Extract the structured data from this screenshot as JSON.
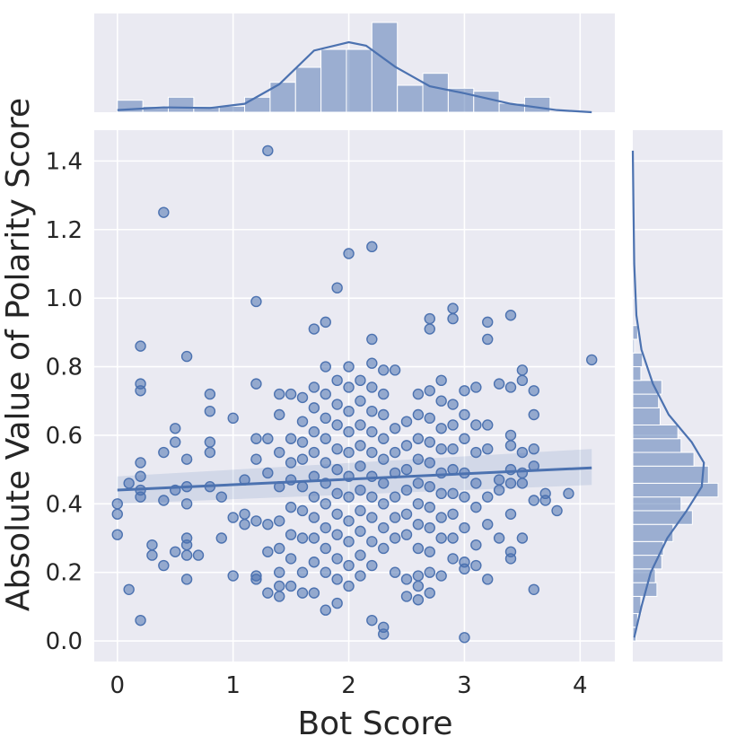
{
  "chart_data": {
    "type": "scatter",
    "title": "",
    "xlabel": "Bot Score",
    "ylabel": "Absolute Value of Polarity Score",
    "xlim": [
      -0.2,
      4.3
    ],
    "ylim": [
      -0.06,
      1.49
    ],
    "xticks": [
      "0",
      "1",
      "2",
      "3",
      "4"
    ],
    "yticks": [
      "0.0",
      "0.2",
      "0.4",
      "0.6",
      "0.8",
      "1.0",
      "1.2",
      "1.4"
    ],
    "grid": true,
    "background": "#eaeaf2",
    "series_color": "#4c72b0",
    "points": [
      [
        0.0,
        0.4
      ],
      [
        0.0,
        0.37
      ],
      [
        0.0,
        0.31
      ],
      [
        0.1,
        0.46
      ],
      [
        0.1,
        0.15
      ],
      [
        0.2,
        0.86
      ],
      [
        0.2,
        0.75
      ],
      [
        0.2,
        0.73
      ],
      [
        0.2,
        0.52
      ],
      [
        0.2,
        0.48
      ],
      [
        0.2,
        0.44
      ],
      [
        0.2,
        0.42
      ],
      [
        0.2,
        0.06
      ],
      [
        0.3,
        0.28
      ],
      [
        0.3,
        0.25
      ],
      [
        0.4,
        1.25
      ],
      [
        0.4,
        0.55
      ],
      [
        0.4,
        0.41
      ],
      [
        0.4,
        0.22
      ],
      [
        0.5,
        0.62
      ],
      [
        0.5,
        0.58
      ],
      [
        0.5,
        0.44
      ],
      [
        0.5,
        0.26
      ],
      [
        0.6,
        0.83
      ],
      [
        0.6,
        0.53
      ],
      [
        0.6,
        0.45
      ],
      [
        0.6,
        0.4
      ],
      [
        0.6,
        0.3
      ],
      [
        0.6,
        0.28
      ],
      [
        0.6,
        0.25
      ],
      [
        0.6,
        0.18
      ],
      [
        0.7,
        0.25
      ],
      [
        0.8,
        0.72
      ],
      [
        0.8,
        0.67
      ],
      [
        0.8,
        0.58
      ],
      [
        0.8,
        0.55
      ],
      [
        0.8,
        0.45
      ],
      [
        0.9,
        0.42
      ],
      [
        0.9,
        0.3
      ],
      [
        1.0,
        0.65
      ],
      [
        1.0,
        0.36
      ],
      [
        1.0,
        0.19
      ],
      [
        1.1,
        0.47
      ],
      [
        1.1,
        0.37
      ],
      [
        1.1,
        0.34
      ],
      [
        1.2,
        0.99
      ],
      [
        1.2,
        0.75
      ],
      [
        1.2,
        0.59
      ],
      [
        1.2,
        0.53
      ],
      [
        1.2,
        0.35
      ],
      [
        1.2,
        0.19
      ],
      [
        1.2,
        0.18
      ],
      [
        1.3,
        1.43
      ],
      [
        1.3,
        0.59
      ],
      [
        1.3,
        0.49
      ],
      [
        1.3,
        0.34
      ],
      [
        1.3,
        0.26
      ],
      [
        1.3,
        0.14
      ],
      [
        1.4,
        0.72
      ],
      [
        1.4,
        0.66
      ],
      [
        1.4,
        0.55
      ],
      [
        1.4,
        0.45
      ],
      [
        1.4,
        0.35
      ],
      [
        1.4,
        0.27
      ],
      [
        1.4,
        0.2
      ],
      [
        1.4,
        0.16
      ],
      [
        1.4,
        0.13
      ],
      [
        1.5,
        0.72
      ],
      [
        1.5,
        0.59
      ],
      [
        1.5,
        0.52
      ],
      [
        1.5,
        0.47
      ],
      [
        1.5,
        0.39
      ],
      [
        1.5,
        0.31
      ],
      [
        1.5,
        0.24
      ],
      [
        1.5,
        0.16
      ],
      [
        1.6,
        0.71
      ],
      [
        1.6,
        0.64
      ],
      [
        1.6,
        0.58
      ],
      [
        1.6,
        0.53
      ],
      [
        1.6,
        0.45
      ],
      [
        1.6,
        0.38
      ],
      [
        1.6,
        0.3
      ],
      [
        1.6,
        0.2
      ],
      [
        1.6,
        0.14
      ],
      [
        1.7,
        0.91
      ],
      [
        1.7,
        0.74
      ],
      [
        1.7,
        0.68
      ],
      [
        1.7,
        0.61
      ],
      [
        1.7,
        0.55
      ],
      [
        1.7,
        0.48
      ],
      [
        1.7,
        0.42
      ],
      [
        1.7,
        0.36
      ],
      [
        1.7,
        0.3
      ],
      [
        1.7,
        0.23
      ],
      [
        1.7,
        0.14
      ],
      [
        1.8,
        0.93
      ],
      [
        1.8,
        0.8
      ],
      [
        1.8,
        0.72
      ],
      [
        1.8,
        0.65
      ],
      [
        1.8,
        0.59
      ],
      [
        1.8,
        0.52
      ],
      [
        1.8,
        0.46
      ],
      [
        1.8,
        0.4
      ],
      [
        1.8,
        0.33
      ],
      [
        1.8,
        0.27
      ],
      [
        1.8,
        0.2
      ],
      [
        1.8,
        0.09
      ],
      [
        1.9,
        1.03
      ],
      [
        1.9,
        0.76
      ],
      [
        1.9,
        0.69
      ],
      [
        1.9,
        0.63
      ],
      [
        1.9,
        0.56
      ],
      [
        1.9,
        0.5
      ],
      [
        1.9,
        0.43
      ],
      [
        1.9,
        0.37
      ],
      [
        1.9,
        0.31
      ],
      [
        1.9,
        0.24
      ],
      [
        1.9,
        0.18
      ],
      [
        1.9,
        0.11
      ],
      [
        2.0,
        1.13
      ],
      [
        2.0,
        0.8
      ],
      [
        2.0,
        0.74
      ],
      [
        2.0,
        0.67
      ],
      [
        2.0,
        0.61
      ],
      [
        2.0,
        0.55
      ],
      [
        2.0,
        0.48
      ],
      [
        2.0,
        0.42
      ],
      [
        2.0,
        0.35
      ],
      [
        2.0,
        0.29
      ],
      [
        2.0,
        0.22
      ],
      [
        2.0,
        0.16
      ],
      [
        2.1,
        0.76
      ],
      [
        2.1,
        0.7
      ],
      [
        2.1,
        0.63
      ],
      [
        2.1,
        0.57
      ],
      [
        2.1,
        0.51
      ],
      [
        2.1,
        0.44
      ],
      [
        2.1,
        0.38
      ],
      [
        2.1,
        0.32
      ],
      [
        2.1,
        0.25
      ],
      [
        2.1,
        0.19
      ],
      [
        2.2,
        1.15
      ],
      [
        2.2,
        0.88
      ],
      [
        2.2,
        0.81
      ],
      [
        2.2,
        0.74
      ],
      [
        2.2,
        0.67
      ],
      [
        2.2,
        0.61
      ],
      [
        2.2,
        0.55
      ],
      [
        2.2,
        0.48
      ],
      [
        2.2,
        0.42
      ],
      [
        2.2,
        0.36
      ],
      [
        2.2,
        0.29
      ],
      [
        2.2,
        0.22
      ],
      [
        2.2,
        0.06
      ],
      [
        2.3,
        0.79
      ],
      [
        2.3,
        0.72
      ],
      [
        2.3,
        0.66
      ],
      [
        2.3,
        0.59
      ],
      [
        2.3,
        0.53
      ],
      [
        2.3,
        0.46
      ],
      [
        2.3,
        0.4
      ],
      [
        2.3,
        0.33
      ],
      [
        2.3,
        0.27
      ],
      [
        2.3,
        0.04
      ],
      [
        2.3,
        0.02
      ],
      [
        2.4,
        0.79
      ],
      [
        2.4,
        0.62
      ],
      [
        2.4,
        0.55
      ],
      [
        2.4,
        0.49
      ],
      [
        2.4,
        0.42
      ],
      [
        2.4,
        0.36
      ],
      [
        2.4,
        0.3
      ],
      [
        2.4,
        0.2
      ],
      [
        2.5,
        0.64
      ],
      [
        2.5,
        0.57
      ],
      [
        2.5,
        0.5
      ],
      [
        2.5,
        0.44
      ],
      [
        2.5,
        0.37
      ],
      [
        2.5,
        0.31
      ],
      [
        2.5,
        0.18
      ],
      [
        2.5,
        0.13
      ],
      [
        2.6,
        0.72
      ],
      [
        2.6,
        0.66
      ],
      [
        2.6,
        0.59
      ],
      [
        2.6,
        0.53
      ],
      [
        2.6,
        0.46
      ],
      [
        2.6,
        0.4
      ],
      [
        2.6,
        0.34
      ],
      [
        2.6,
        0.27
      ],
      [
        2.6,
        0.19
      ],
      [
        2.6,
        0.16
      ],
      [
        2.6,
        0.12
      ],
      [
        2.7,
        0.94
      ],
      [
        2.7,
        0.91
      ],
      [
        2.7,
        0.73
      ],
      [
        2.7,
        0.65
      ],
      [
        2.7,
        0.58
      ],
      [
        2.7,
        0.52
      ],
      [
        2.7,
        0.45
      ],
      [
        2.7,
        0.39
      ],
      [
        2.7,
        0.33
      ],
      [
        2.7,
        0.26
      ],
      [
        2.7,
        0.2
      ],
      [
        2.7,
        0.14
      ],
      [
        2.8,
        0.76
      ],
      [
        2.8,
        0.7
      ],
      [
        2.8,
        0.62
      ],
      [
        2.8,
        0.56
      ],
      [
        2.8,
        0.49
      ],
      [
        2.8,
        0.43
      ],
      [
        2.8,
        0.36
      ],
      [
        2.8,
        0.3
      ],
      [
        2.8,
        0.19
      ],
      [
        2.9,
        0.97
      ],
      [
        2.9,
        0.94
      ],
      [
        2.9,
        0.69
      ],
      [
        2.9,
        0.63
      ],
      [
        2.9,
        0.56
      ],
      [
        2.9,
        0.5
      ],
      [
        2.9,
        0.43
      ],
      [
        2.9,
        0.37
      ],
      [
        2.9,
        0.3
      ],
      [
        2.9,
        0.24
      ],
      [
        3.0,
        0.73
      ],
      [
        3.0,
        0.66
      ],
      [
        3.0,
        0.59
      ],
      [
        3.0,
        0.49
      ],
      [
        3.0,
        0.42
      ],
      [
        3.0,
        0.33
      ],
      [
        3.0,
        0.23
      ],
      [
        3.0,
        0.21
      ],
      [
        3.0,
        0.01
      ],
      [
        3.1,
        0.74
      ],
      [
        3.1,
        0.63
      ],
      [
        3.1,
        0.55
      ],
      [
        3.1,
        0.46
      ],
      [
        3.1,
        0.39
      ],
      [
        3.1,
        0.28
      ],
      [
        3.1,
        0.22
      ],
      [
        3.2,
        0.93
      ],
      [
        3.2,
        0.88
      ],
      [
        3.2,
        0.63
      ],
      [
        3.2,
        0.56
      ],
      [
        3.2,
        0.42
      ],
      [
        3.2,
        0.34
      ],
      [
        3.2,
        0.18
      ],
      [
        3.3,
        0.75
      ],
      [
        3.3,
        0.47
      ],
      [
        3.3,
        0.44
      ],
      [
        3.3,
        0.3
      ],
      [
        3.4,
        0.95
      ],
      [
        3.4,
        0.74
      ],
      [
        3.4,
        0.6
      ],
      [
        3.4,
        0.57
      ],
      [
        3.4,
        0.5
      ],
      [
        3.4,
        0.46
      ],
      [
        3.4,
        0.37
      ],
      [
        3.4,
        0.26
      ],
      [
        3.4,
        0.24
      ],
      [
        3.5,
        0.79
      ],
      [
        3.5,
        0.76
      ],
      [
        3.5,
        0.55
      ],
      [
        3.5,
        0.49
      ],
      [
        3.5,
        0.46
      ],
      [
        3.5,
        0.3
      ],
      [
        3.6,
        0.73
      ],
      [
        3.6,
        0.66
      ],
      [
        3.6,
        0.56
      ],
      [
        3.6,
        0.51
      ],
      [
        3.6,
        0.41
      ],
      [
        3.6,
        0.15
      ],
      [
        3.7,
        0.43
      ],
      [
        3.7,
        0.41
      ],
      [
        3.8,
        0.38
      ],
      [
        3.9,
        0.43
      ],
      [
        4.1,
        0.82
      ]
    ],
    "regression": {
      "x": [
        0.0,
        4.1
      ],
      "y": [
        0.44,
        0.505
      ],
      "ci_low": [
        0.4,
        0.455
      ],
      "ci_high": [
        0.48,
        0.56
      ]
    },
    "marginal_x": {
      "bin_edges": [
        0.0,
        0.22,
        0.44,
        0.66,
        0.88,
        1.1,
        1.32,
        1.54,
        1.76,
        1.98,
        2.2,
        2.42,
        2.64,
        2.86,
        3.08,
        3.3,
        3.52,
        3.74,
        3.96,
        4.18
      ],
      "counts": [
        4,
        2,
        5,
        2,
        2,
        5,
        10,
        15,
        21,
        21,
        30,
        9,
        13,
        8,
        7,
        3,
        5,
        0,
        0
      ],
      "kde_x": [
        0.0,
        0.4,
        0.8,
        1.1,
        1.4,
        1.7,
        2.0,
        2.15,
        2.4,
        2.7,
        3.0,
        3.4,
        3.8,
        4.1
      ],
      "kde_y": [
        0.03,
        0.07,
        0.06,
        0.12,
        0.4,
        0.88,
        1.0,
        0.95,
        0.65,
        0.37,
        0.27,
        0.12,
        0.03,
        0.0
      ]
    },
    "marginal_y": {
      "bin_edges": [
        0.0,
        0.04,
        0.08,
        0.13,
        0.17,
        0.21,
        0.25,
        0.29,
        0.34,
        0.38,
        0.42,
        0.46,
        0.51,
        0.55,
        0.59,
        0.63,
        0.68,
        0.72,
        0.76,
        0.8,
        0.84,
        0.88,
        0.92
      ],
      "counts": [
        2,
        3,
        5,
        15,
        14,
        18,
        19,
        25,
        37,
        30,
        53,
        47,
        38,
        30,
        28,
        17,
        16,
        18,
        5,
        6,
        1,
        3
      ],
      "kde_y": [
        0.01,
        0.1,
        0.2,
        0.3,
        0.38,
        0.45,
        0.52,
        0.58,
        0.66,
        0.75,
        0.85,
        0.95,
        1.1,
        1.25,
        1.43
      ],
      "kde_x": [
        0.02,
        0.12,
        0.25,
        0.48,
        0.75,
        0.96,
        0.99,
        0.82,
        0.5,
        0.28,
        0.12,
        0.05,
        0.02,
        0.01,
        0.0
      ]
    }
  }
}
